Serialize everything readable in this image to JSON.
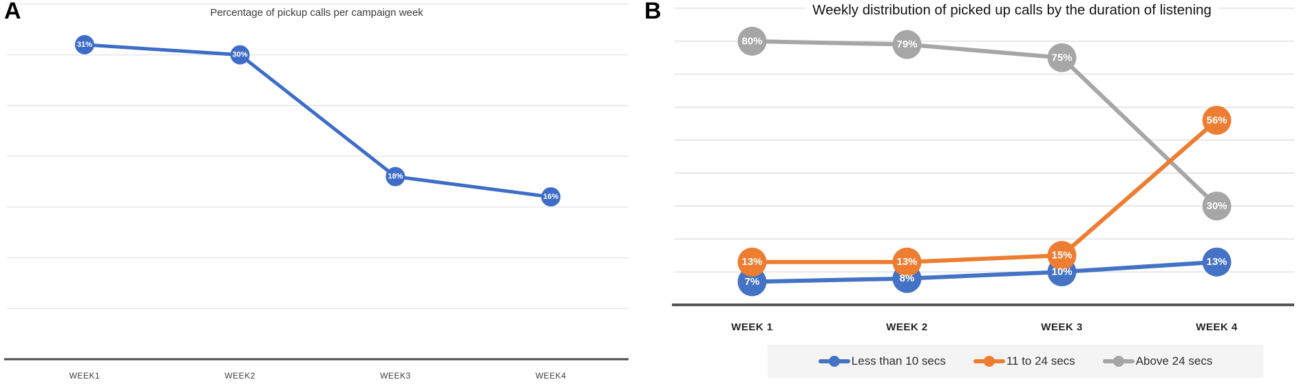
{
  "figure": {
    "panel_a_label": "A",
    "panel_b_label": "B"
  },
  "chart_data": [
    {
      "panel": "A",
      "type": "line",
      "title": "Percentage of pickup calls per campaign week",
      "categories": [
        "WEEK1",
        "WEEK2",
        "WEEK3",
        "WEEK4"
      ],
      "series": [
        {
          "name": "Pickup calls",
          "color": "#3E6DC8",
          "values": [
            31,
            30,
            18,
            16
          ],
          "data_labels": [
            "31%",
            "30%",
            "18%",
            "16%"
          ]
        }
      ],
      "xlabel": "",
      "ylabel": "",
      "ylim": [
        0,
        35
      ],
      "grid_step": 5,
      "grid": true,
      "legend": "none",
      "data_label_format": "percent"
    },
    {
      "panel": "B",
      "type": "line",
      "title": "Weekly distribution of picked up calls by the duration of listening",
      "categories": [
        "WEEK 1",
        "WEEK 2",
        "WEEK 3",
        "WEEK 4"
      ],
      "series": [
        {
          "name": "Less than 10 secs",
          "color": "#4472C4",
          "values": [
            7,
            8,
            10,
            13
          ],
          "data_labels": [
            "7%",
            "8%",
            "10%",
            "13%"
          ]
        },
        {
          "name": "11 to 24 secs",
          "color": "#ED7D31",
          "values": [
            13,
            13,
            15,
            56
          ],
          "data_labels": [
            "13%",
            "13%",
            "15%",
            "56%"
          ]
        },
        {
          "name": "Above 24 secs",
          "color": "#A6A6A6",
          "values": [
            80,
            79,
            75,
            30
          ],
          "data_labels": [
            "80%",
            "79%",
            "75%",
            "30%"
          ]
        }
      ],
      "xlabel": "",
      "ylabel": "",
      "ylim": [
        0,
        90
      ],
      "grid_step": 10,
      "grid": true,
      "legend": "bottom",
      "data_label_format": "percent"
    }
  ]
}
